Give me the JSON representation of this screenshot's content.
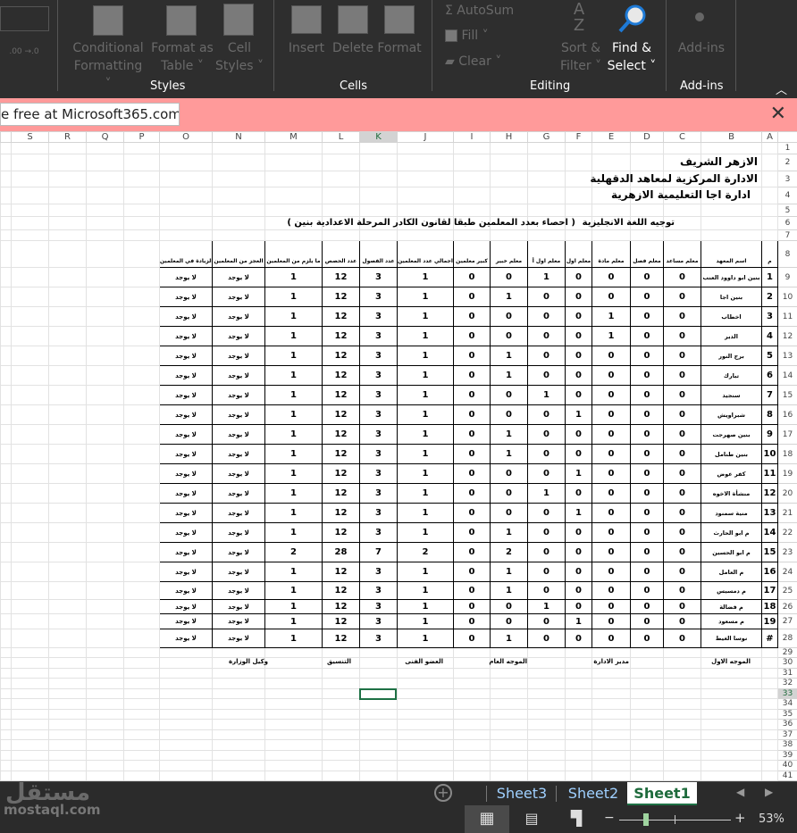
{
  "ribbon": {
    "styles": {
      "label": "Styles",
      "conditional": "Conditional",
      "conditional2": "Formatting ˅",
      "format_table": "Format as",
      "format_table2": "Table ˅",
      "cell_styles": "Cell",
      "cell_styles2": "Styles ˅"
    },
    "cells": {
      "label": "Cells",
      "insert": "Insert",
      "delete": "Delete",
      "format": "Format"
    },
    "editing": {
      "label": "Editing",
      "autosum": "Σ AutoSum",
      "fill": "Fill ˅",
      "clear": "Clear ˅",
      "sort": "Sort &",
      "sort2": "Filter ˅",
      "find": "Find &",
      "find2": "Select ˅"
    },
    "addins": {
      "label": "Add-ins",
      "addins": "Add-ins"
    },
    "number_dec": ".00 →.0"
  },
  "banner": {
    "text": "e free at Microsoft365.com",
    "close": "✕"
  },
  "columns": [
    "",
    "S",
    "R",
    "Q",
    "P",
    "O",
    "N",
    "M",
    "L",
    "K",
    "J",
    "I",
    "H",
    "G",
    "F",
    "E",
    "D",
    "C",
    "B",
    "A"
  ],
  "selected": {
    "column": "K",
    "row": 33
  },
  "titles": {
    "r2": "الازهر الشريف",
    "r3": "الادارة المركزية لمعاهد الدقهلية",
    "r4": "ادارة اجا التعليمية الازهرية",
    "r6a": "توجيه اللغة الانجليزية",
    "r6b": "( احصاء بعدد المعلمين طبقا لقانون الكادر المرحلة الاعدادية بنين )"
  },
  "headers": [
    "م",
    "اسم المعهد",
    "معلم مساعد",
    "معلم فصل",
    "معلم مادة",
    "معلم اول",
    "معلم اول أ",
    "معلم خبير",
    "كبير معلمين",
    "اجمالي عدد المعلمين",
    "عدد الفصول",
    "عدد الحصص",
    "ما يلزم من المعلمين",
    "العجز من المعلمين",
    "الزيادة في المعلمين"
  ],
  "rows": [
    {
      "n": "1",
      "name": "بنين ابو داوود العنب",
      "v": [
        0,
        0,
        0,
        0,
        1,
        0,
        0,
        1,
        3,
        12,
        1,
        "لا يوجد",
        "لا يوجد"
      ]
    },
    {
      "n": "2",
      "name": "بنين اجا",
      "v": [
        0,
        0,
        0,
        0,
        0,
        1,
        0,
        1,
        3,
        12,
        1,
        "لا يوجد",
        "لا يوجد"
      ]
    },
    {
      "n": "3",
      "name": "اخطاب",
      "v": [
        0,
        0,
        1,
        0,
        0,
        0,
        0,
        1,
        3,
        12,
        1,
        "لا يوجد",
        "لا يوجد"
      ]
    },
    {
      "n": "4",
      "name": "الدير",
      "v": [
        0,
        0,
        1,
        0,
        0,
        0,
        0,
        1,
        3,
        12,
        1,
        "لا يوجد",
        "لا يوجد"
      ]
    },
    {
      "n": "5",
      "name": "برج النور",
      "v": [
        0,
        0,
        0,
        0,
        0,
        1,
        0,
        1,
        3,
        12,
        1,
        "لا يوجد",
        "لا يوجد"
      ]
    },
    {
      "n": "6",
      "name": "تبارك",
      "v": [
        0,
        0,
        0,
        0,
        0,
        1,
        0,
        1,
        3,
        12,
        1,
        "لا يوجد",
        "لا يوجد"
      ]
    },
    {
      "n": "7",
      "name": "سنجيد",
      "v": [
        0,
        0,
        0,
        0,
        1,
        0,
        0,
        1,
        3,
        12,
        1,
        "لا يوجد",
        "لا يوجد"
      ]
    },
    {
      "n": "8",
      "name": "شبراويش",
      "v": [
        0,
        0,
        0,
        1,
        0,
        0,
        0,
        1,
        3,
        12,
        1,
        "لا يوجد",
        "لا يوجد"
      ]
    },
    {
      "n": "9",
      "name": "بنين صهرجت",
      "v": [
        0,
        0,
        0,
        0,
        0,
        1,
        0,
        1,
        3,
        12,
        1,
        "لا يوجد",
        "لا يوجد"
      ]
    },
    {
      "n": "10",
      "name": "بنين طنامل",
      "v": [
        0,
        0,
        0,
        0,
        0,
        1,
        0,
        1,
        3,
        12,
        1,
        "لا يوجد",
        "لا يوجد"
      ]
    },
    {
      "n": "11",
      "name": "كفر عوض",
      "v": [
        0,
        0,
        0,
        1,
        0,
        0,
        0,
        1,
        3,
        12,
        1,
        "لا يوجد",
        "لا يوجد"
      ]
    },
    {
      "n": "12",
      "name": "منشأة الاخوه",
      "v": [
        0,
        0,
        0,
        0,
        1,
        0,
        0,
        1,
        3,
        12,
        1,
        "لا يوجد",
        "لا يوجد"
      ]
    },
    {
      "n": "13",
      "name": "منية سمنود",
      "v": [
        0,
        0,
        0,
        1,
        0,
        0,
        0,
        1,
        3,
        12,
        1,
        "لا يوجد",
        "لا يوجد"
      ]
    },
    {
      "n": "14",
      "name": "م ابو الحارث",
      "v": [
        0,
        0,
        0,
        0,
        0,
        1,
        0,
        1,
        3,
        12,
        1,
        "لا يوجد",
        "لا يوجد"
      ]
    },
    {
      "n": "15",
      "name": "م ابو الحسين",
      "v": [
        0,
        0,
        0,
        0,
        0,
        2,
        0,
        2,
        7,
        28,
        2,
        "لا يوجد",
        "لا يوجد"
      ]
    },
    {
      "n": "16",
      "name": "م العامل",
      "v": [
        0,
        0,
        0,
        0,
        0,
        1,
        0,
        1,
        3,
        12,
        1,
        "لا يوجد",
        "لا يوجد"
      ]
    },
    {
      "n": "17",
      "name": "م دمسيس",
      "v": [
        0,
        0,
        0,
        0,
        0,
        1,
        0,
        1,
        3,
        12,
        1,
        "لا يوجد",
        "لا يوجد"
      ]
    },
    {
      "n": "18",
      "name": "م فضالة",
      "v": [
        0,
        0,
        0,
        0,
        1,
        0,
        0,
        1,
        3,
        12,
        1,
        "لا يوجد",
        "لا يوجد"
      ]
    },
    {
      "n": "19",
      "name": "م مسعود",
      "v": [
        0,
        0,
        0,
        1,
        0,
        0,
        0,
        1,
        3,
        12,
        1,
        "لا يوجد",
        "لا يوجد"
      ]
    },
    {
      "n": "#",
      "name": "نوسا الغيط",
      "v": [
        0,
        0,
        0,
        0,
        0,
        1,
        0,
        1,
        3,
        12,
        1,
        "لا يوجد",
        "لا يوجد"
      ]
    }
  ],
  "signatures": [
    "الموجه الاول",
    "مدير الادارة",
    "الموجه العام",
    "العضو الفنى",
    "التنسيق",
    "وكيل الوزارة"
  ],
  "sheet_tabs": [
    "Sheet3",
    "Sheet2",
    "Sheet1"
  ],
  "active_tab": "Sheet1",
  "status": {
    "zoom": "53%",
    "zoom_fraction": 0.53,
    "minus": "−",
    "plus": "+"
  },
  "watermark": "mostaql.com"
}
